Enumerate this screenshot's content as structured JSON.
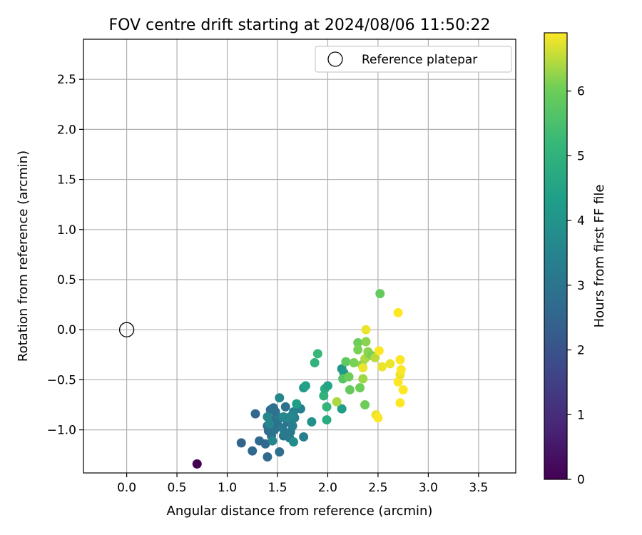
{
  "chart_data": {
    "type": "scatter",
    "title": "FOV centre drift starting at 2024/08/06 11:50:22",
    "xlabel": "Angular distance from reference (arcmin)",
    "ylabel": "Rotation from reference (arcmin)",
    "xlim": [
      -0.43,
      3.87
    ],
    "ylim": [
      -1.43,
      2.9
    ],
    "xticks": [
      0.0,
      0.5,
      1.0,
      1.5,
      2.0,
      2.5,
      3.0,
      3.5
    ],
    "xtick_labels": [
      "0.0",
      "0.5",
      "1.0",
      "1.5",
      "2.0",
      "2.5",
      "3.0",
      "3.5"
    ],
    "yticks": [
      -1.0,
      -0.5,
      0.0,
      0.5,
      1.0,
      1.5,
      2.0,
      2.5
    ],
    "ytick_labels": [
      "−1.0",
      "−0.5",
      "0.0",
      "0.5",
      "1.0",
      "1.5",
      "2.0",
      "2.5"
    ],
    "grid": true,
    "legend_position": "top-right",
    "legend_label": "Reference platepar",
    "reference_point": [
      0.0,
      0.0
    ],
    "colorbar": {
      "label": "Hours from first FF file",
      "min": 0,
      "max": 6.9,
      "ticks": [
        0,
        1,
        2,
        3,
        4,
        5,
        6
      ],
      "tick_labels": [
        "0",
        "1",
        "2",
        "3",
        "4",
        "5",
        "6"
      ],
      "colormap": "viridis"
    },
    "points": [
      [
        0.7,
        -1.34,
        0.0
      ],
      [
        1.14,
        -1.13,
        2.5
      ],
      [
        1.25,
        -1.21,
        2.6
      ],
      [
        1.28,
        -0.84,
        2.6
      ],
      [
        1.32,
        -1.11,
        2.7
      ],
      [
        1.38,
        -1.14,
        2.6
      ],
      [
        1.4,
        -0.96,
        2.7
      ],
      [
        1.4,
        -1.27,
        2.7
      ],
      [
        1.41,
        -1.01,
        2.8
      ],
      [
        1.43,
        -0.8,
        2.8
      ],
      [
        1.44,
        -1.06,
        2.9
      ],
      [
        1.45,
        -0.9,
        3.0
      ],
      [
        1.46,
        -0.78,
        2.8
      ],
      [
        1.47,
        -1.0,
        3.0
      ],
      [
        1.48,
        -0.82,
        2.9
      ],
      [
        1.5,
        -0.95,
        2.9
      ],
      [
        1.52,
        -1.22,
        2.8
      ],
      [
        1.53,
        -0.88,
        3.1
      ],
      [
        1.55,
        -0.98,
        3.1
      ],
      [
        1.56,
        -1.06,
        3.0
      ],
      [
        1.57,
        -1.03,
        3.2
      ],
      [
        1.58,
        -0.77,
        2.9
      ],
      [
        1.6,
        -0.92,
        3.0
      ],
      [
        1.62,
        -1.08,
        3.2
      ],
      [
        1.63,
        -1.02,
        3.2
      ],
      [
        1.65,
        -0.96,
        3.3
      ],
      [
        1.66,
        -0.82,
        3.4
      ],
      [
        1.67,
        -0.88,
        3.4
      ],
      [
        1.4,
        -0.87,
        3.6
      ],
      [
        1.42,
        -0.94,
        3.6
      ],
      [
        1.45,
        -1.11,
        3.6
      ],
      [
        1.52,
        -0.68,
        3.6
      ],
      [
        1.56,
        -0.87,
        3.7
      ],
      [
        1.6,
        -0.88,
        3.6
      ],
      [
        1.64,
        -0.86,
        3.6
      ],
      [
        1.66,
        -1.12,
        3.8
      ],
      [
        1.73,
        -0.79,
        3.4
      ],
      [
        1.76,
        -1.07,
        3.4
      ],
      [
        1.84,
        -0.92,
        3.9
      ],
      [
        1.69,
        -0.74,
        4.3
      ],
      [
        1.76,
        -0.58,
        4.1
      ],
      [
        1.78,
        -0.56,
        4.4
      ],
      [
        1.87,
        -0.33,
        5.0
      ],
      [
        1.9,
        -0.24,
        5.2
      ],
      [
        1.96,
        -0.66,
        5.0
      ],
      [
        1.97,
        -0.59,
        4.8
      ],
      [
        1.99,
        -0.77,
        5.1
      ],
      [
        1.99,
        -0.9,
        4.8
      ],
      [
        2.0,
        -0.56,
        4.5
      ],
      [
        2.14,
        -0.79,
        4.3
      ],
      [
        2.14,
        -0.39,
        4.1
      ],
      [
        2.16,
        -0.43,
        4.2
      ],
      [
        2.09,
        -0.72,
        6.4
      ],
      [
        2.15,
        -0.49,
        5.7
      ],
      [
        2.18,
        -0.32,
        5.8
      ],
      [
        2.21,
        -0.47,
        6.0
      ],
      [
        2.22,
        -0.6,
        5.9
      ],
      [
        2.26,
        -0.33,
        6.1
      ],
      [
        2.3,
        -0.13,
        6.0
      ],
      [
        2.3,
        -0.2,
        6.1
      ],
      [
        2.32,
        -0.58,
        6.0
      ],
      [
        2.34,
        -0.35,
        6.2
      ],
      [
        2.35,
        -0.49,
        6.3
      ],
      [
        2.37,
        -0.75,
        6.0
      ],
      [
        2.37,
        -0.29,
        6.4
      ],
      [
        2.38,
        -0.12,
        6.2
      ],
      [
        2.4,
        -0.22,
        6.2
      ],
      [
        2.41,
        -0.24,
        6.2
      ],
      [
        2.44,
        -0.26,
        6.1
      ],
      [
        2.47,
        -0.28,
        6.5
      ],
      [
        2.52,
        0.36,
        5.9
      ],
      [
        2.38,
        0.0,
        6.8
      ],
      [
        2.35,
        -0.38,
        6.8
      ],
      [
        2.48,
        -0.85,
        6.8
      ],
      [
        2.5,
        -0.88,
        6.9
      ],
      [
        2.51,
        -0.21,
        6.9
      ],
      [
        2.54,
        -0.37,
        6.8
      ],
      [
        2.62,
        -0.34,
        6.8
      ],
      [
        2.7,
        0.17,
        6.9
      ],
      [
        2.7,
        -0.52,
        6.9
      ],
      [
        2.72,
        -0.3,
        6.9
      ],
      [
        2.72,
        -0.45,
        6.8
      ],
      [
        2.73,
        -0.4,
        6.9
      ],
      [
        2.72,
        -0.73,
        6.9
      ],
      [
        2.75,
        -0.6,
        6.9
      ]
    ]
  }
}
